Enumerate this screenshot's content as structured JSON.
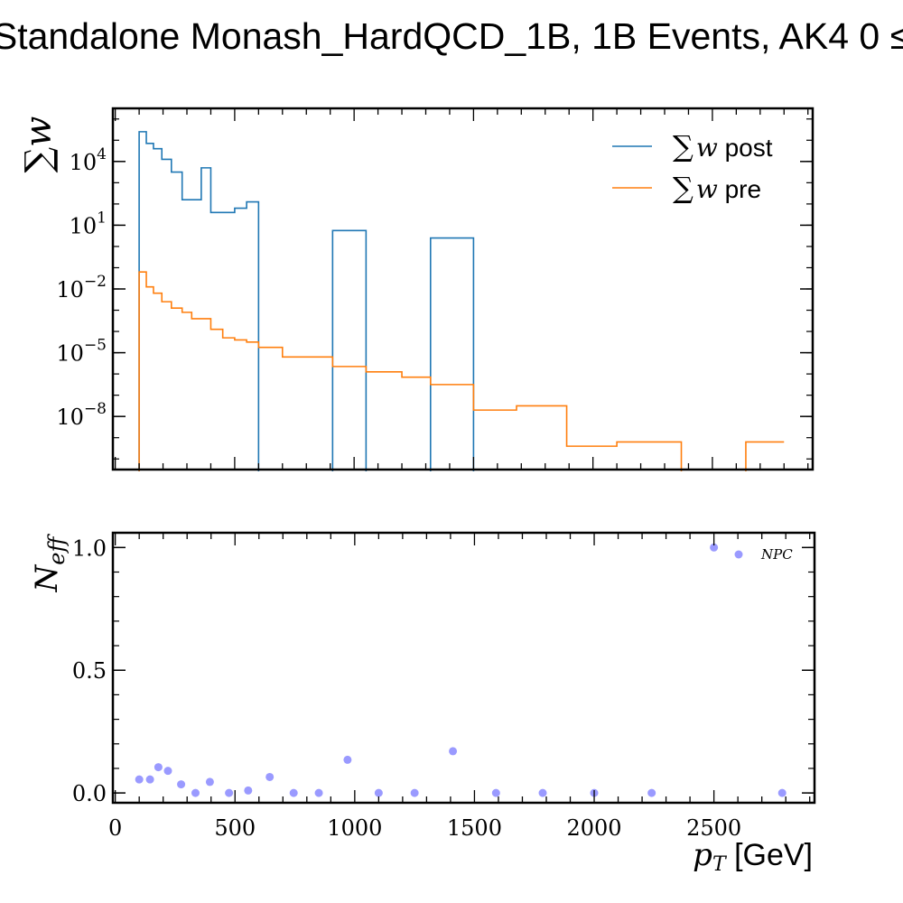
{
  "chart_data": [
    {
      "type": "line",
      "title": "Standalone Monash_HardQCD_1B, 1B Events, AK4 0 ≤",
      "ylabel": "∑w",
      "yscale": "log",
      "ylim_exp": [
        -10.5,
        6.5
      ],
      "xlim": [
        -10,
        2920
      ],
      "yticks": [
        {
          "exp": 4,
          "label": "10"
        },
        {
          "exp": 1,
          "label": "10"
        },
        {
          "exp": -2,
          "label": "10"
        },
        {
          "exp": -5,
          "label": "10"
        },
        {
          "exp": -8,
          "label": "10"
        }
      ],
      "ytick_exponents": [
        "4",
        "1",
        "−2",
        "−5",
        "−8"
      ],
      "legend": {
        "placement": "top-right",
        "entries": [
          {
            "prefix": "∑",
            "var": "w",
            "suffix": " post",
            "color": "#1f77b4"
          },
          {
            "prefix": "∑",
            "var": "w",
            "suffix": " pre",
            "color": "#ff7f0e"
          }
        ]
      },
      "series": [
        {
          "name": "∑w post",
          "color": "#1f77b4",
          "edges": [
            100,
            130,
            160,
            195,
            235,
            280,
            320,
            360,
            400,
            450,
            500,
            550,
            600,
            700,
            800,
            910,
            1050,
            1200,
            1320,
            1500,
            1680,
            1890,
            2100,
            2370,
            2640,
            2800
          ],
          "log10_values": [
            5.4,
            4.85,
            4.6,
            4.1,
            3.5,
            2.2,
            2.2,
            3.7,
            1.6,
            1.6,
            1.8,
            2.1,
            null,
            null,
            null,
            0.75,
            null,
            null,
            0.4,
            null,
            null,
            null,
            null,
            null,
            null
          ]
        },
        {
          "name": "∑w pre",
          "color": "#ff7f0e",
          "edges": [
            100,
            130,
            160,
            195,
            235,
            280,
            320,
            360,
            400,
            450,
            500,
            550,
            600,
            700,
            800,
            910,
            1050,
            1200,
            1320,
            1500,
            1680,
            1890,
            2100,
            2370,
            2640,
            2800
          ],
          "log10_values": [
            -1.2,
            -1.9,
            -2.2,
            -2.6,
            -2.9,
            -3.1,
            -3.4,
            -3.4,
            -3.9,
            -4.3,
            -4.4,
            -4.5,
            -4.75,
            -5.2,
            -5.2,
            -5.65,
            -5.9,
            -6.15,
            -6.5,
            -7.7,
            -7.5,
            -9.4,
            -9.2,
            null,
            -9.2
          ]
        }
      ]
    },
    {
      "type": "scatter",
      "ylabel": "N",
      "ylabel_sub": "eff",
      "xlabel": "p",
      "xlabel_sub": "T",
      "xlabel_unit": " [GeV]",
      "xlim": [
        -10,
        2920
      ],
      "ylim": [
        -0.04,
        1.06
      ],
      "xticks": [
        0,
        500,
        1000,
        1500,
        2000,
        2500
      ],
      "xtick_labels": [
        "0",
        "500",
        "1000",
        "1500",
        "2000",
        "2500"
      ],
      "yticks": [
        0.0,
        0.5,
        1.0
      ],
      "ytick_labels": [
        "0.0",
        "0.5",
        "1.0"
      ],
      "legend": {
        "placement": "top-right",
        "label": "NPC"
      },
      "color": "#8888ff",
      "points": [
        {
          "x": 100,
          "y": 0.055
        },
        {
          "x": 145,
          "y": 0.055
        },
        {
          "x": 180,
          "y": 0.105
        },
        {
          "x": 220,
          "y": 0.09
        },
        {
          "x": 275,
          "y": 0.035
        },
        {
          "x": 335,
          "y": 0.0
        },
        {
          "x": 395,
          "y": 0.045
        },
        {
          "x": 475,
          "y": 0.0
        },
        {
          "x": 555,
          "y": 0.01
        },
        {
          "x": 645,
          "y": 0.065
        },
        {
          "x": 745,
          "y": 0.0
        },
        {
          "x": 850,
          "y": 0.0
        },
        {
          "x": 970,
          "y": 0.135
        },
        {
          "x": 1100,
          "y": 0.0
        },
        {
          "x": 1250,
          "y": 0.0
        },
        {
          "x": 1410,
          "y": 0.17
        },
        {
          "x": 1590,
          "y": 0.0
        },
        {
          "x": 1785,
          "y": 0.0
        },
        {
          "x": 2000,
          "y": 0.0
        },
        {
          "x": 2240,
          "y": 0.0
        },
        {
          "x": 2500,
          "y": 1.0
        },
        {
          "x": 2785,
          "y": 0.0
        }
      ]
    }
  ]
}
